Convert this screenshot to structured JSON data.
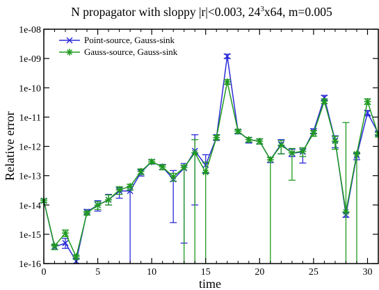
{
  "chart_data": {
    "type": "scatter",
    "title_main": "N propagator with sloppy |r|<0.003, 24",
    "title_sup": "3",
    "title_rest": "x64, m=0.005",
    "xlabel": "time",
    "ylabel": "Relative error",
    "xlim": [
      0,
      31
    ],
    "ylim": [
      1e-16,
      1e-08
    ],
    "yscale": "log",
    "grid": false,
    "legend_position": "top-left",
    "x_ticks": [
      0,
      5,
      10,
      15,
      20,
      25,
      30
    ],
    "y_ticks": [
      1e-16,
      1e-15,
      1e-14,
      1e-13,
      1e-12,
      1e-11,
      1e-10,
      1e-09,
      1e-08
    ],
    "y_tick_labels": [
      "1e-16",
      "1e-15",
      "1e-14",
      "1e-13",
      "1e-12",
      "1e-11",
      "1e-10",
      "1e-09",
      "1e-08"
    ],
    "series": [
      {
        "name": "Point-source, Gauss-sink",
        "color": "#2a2ad8",
        "marker": "x",
        "points": [
          {
            "x": 0,
            "y": 1.4e-14,
            "lo": 1.2e-14,
            "hi": 1.6e-14
          },
          {
            "x": 1,
            "y": 3.7e-16,
            "lo": 3e-16,
            "hi": 4.5e-16
          },
          {
            "x": 2,
            "y": 5e-16,
            "lo": 3.3e-16,
            "hi": 7.2e-16
          },
          {
            "x": 3,
            "y": 1.2e-16,
            "lo": 1e-16,
            "hi": 1.5e-16
          },
          {
            "x": 4,
            "y": 5.8e-15,
            "lo": 4.5e-15,
            "hi": 7e-15
          },
          {
            "x": 5,
            "y": 1e-14,
            "lo": 6.2e-15,
            "hi": 1.4e-14
          },
          {
            "x": 6,
            "y": 1.5e-14,
            "lo": 1e-14,
            "hi": 2.3e-14
          },
          {
            "x": 7,
            "y": 3e-14,
            "lo": 1.7e-14,
            "hi": 4e-14
          },
          {
            "x": 8,
            "y": 3e-14,
            "lo": 1e-16,
            "hi": 4.3e-14
          },
          {
            "x": 9,
            "y": 1.3e-13,
            "lo": 9.7e-14,
            "hi": 1.6e-13
          },
          {
            "x": 10,
            "y": 3e-13,
            "lo": 2.5e-13,
            "hi": 3.5e-13
          },
          {
            "x": 11,
            "y": 2e-13,
            "lo": 1.6e-13,
            "hi": 2.4e-13
          },
          {
            "x": 12,
            "y": 7.5e-14,
            "lo": 2.5e-15,
            "hi": 1.5e-13
          },
          {
            "x": 13,
            "y": 1.8e-13,
            "lo": 5e-16,
            "hi": 2.6e-13
          },
          {
            "x": 14,
            "y": 7e-13,
            "lo": 1e-14,
            "hi": 2.5e-12
          },
          {
            "x": 15,
            "y": 2.3e-13,
            "lo": 1.2e-13,
            "hi": 5.2e-13
          },
          {
            "x": 16,
            "y": 2e-12,
            "lo": 1.6e-12,
            "hi": 2.5e-12
          },
          {
            "x": 17,
            "y": 1.2e-09,
            "lo": 1e-09,
            "hi": 1.4e-09
          },
          {
            "x": 18,
            "y": 3.2e-12,
            "lo": 2.7e-12,
            "hi": 3.8e-12
          },
          {
            "x": 19,
            "y": 1.7e-12,
            "lo": 1.3e-12,
            "hi": 2e-12
          },
          {
            "x": 20,
            "y": 1.5e-12,
            "lo": 1.2e-12,
            "hi": 1.8e-12
          },
          {
            "x": 21,
            "y": 3.5e-13,
            "lo": 2.8e-13,
            "hi": 4.2e-13
          },
          {
            "x": 22,
            "y": 1.2e-12,
            "lo": 5.6e-13,
            "hi": 1.7e-12
          },
          {
            "x": 23,
            "y": 5.8e-13,
            "lo": 4.5e-13,
            "hi": 8e-13
          },
          {
            "x": 24,
            "y": 6.5e-13,
            "lo": 2.7e-13,
            "hi": 8.2e-13
          },
          {
            "x": 25,
            "y": 3.3e-12,
            "lo": 2.7e-12,
            "hi": 4e-12
          },
          {
            "x": 26,
            "y": 4.6e-11,
            "lo": 3.7e-11,
            "hi": 5.5e-11
          },
          {
            "x": 27,
            "y": 1.6e-12,
            "lo": 9e-13,
            "hi": 2.3e-12
          },
          {
            "x": 28,
            "y": 4.6e-15,
            "lo": 3.8e-15,
            "hi": 5.5e-15
          },
          {
            "x": 29,
            "y": 4.8e-13,
            "lo": 3.5e-13,
            "hi": 5.8e-13
          },
          {
            "x": 30,
            "y": 1.4e-11,
            "lo": 1.1e-11,
            "hi": 1.7e-11
          },
          {
            "x": 31,
            "y": 2.8e-12,
            "lo": 2.4e-12,
            "hi": 3.3e-12
          }
        ]
      },
      {
        "name": "Gauss-source, Gauss-sink",
        "color": "#1f9a1f",
        "marker": "asterisk",
        "points": [
          {
            "x": 0,
            "y": 1.4e-14,
            "lo": 1.2e-14,
            "hi": 1.6e-14
          },
          {
            "x": 1,
            "y": 4e-16,
            "lo": 3e-16,
            "hi": 4.4e-16
          },
          {
            "x": 2,
            "y": 1.1e-15,
            "lo": 8.3e-16,
            "hi": 1.4e-15
          },
          {
            "x": 3,
            "y": 1.7e-16,
            "lo": 1.4e-16,
            "hi": 1.9e-16
          },
          {
            "x": 4,
            "y": 5.4e-15,
            "lo": 4.5e-15,
            "hi": 6e-15
          },
          {
            "x": 5,
            "y": 9.8e-15,
            "lo": 7e-15,
            "hi": 1.3e-14
          },
          {
            "x": 6,
            "y": 1.5e-14,
            "lo": 1e-14,
            "hi": 2.2e-14
          },
          {
            "x": 7,
            "y": 3.3e-14,
            "lo": 2.3e-14,
            "hi": 4.2e-14
          },
          {
            "x": 8,
            "y": 4.3e-14,
            "lo": 3.2e-14,
            "hi": 5.1e-14
          },
          {
            "x": 9,
            "y": 1.4e-13,
            "lo": 1.1e-13,
            "hi": 1.7e-13
          },
          {
            "x": 10,
            "y": 3e-13,
            "lo": 2.6e-13,
            "hi": 3.5e-13
          },
          {
            "x": 11,
            "y": 2e-13,
            "lo": 1.6e-13,
            "hi": 2.3e-13
          },
          {
            "x": 12,
            "y": 9.2e-14,
            "lo": 6.5e-14,
            "hi": 1.2e-13
          },
          {
            "x": 13,
            "y": 1.9e-13,
            "lo": 1e-16,
            "hi": 2.3e-13
          },
          {
            "x": 14,
            "y": 6e-13,
            "lo": 1e-16,
            "hi": 1.7e-12
          },
          {
            "x": 15,
            "y": 1.3e-13,
            "lo": 1e-16,
            "hi": 2.9e-13
          },
          {
            "x": 16,
            "y": 2e-12,
            "lo": 1.7e-12,
            "hi": 2.4e-12
          },
          {
            "x": 17,
            "y": 1.6e-10,
            "lo": 1.3e-10,
            "hi": 1.9e-10
          },
          {
            "x": 18,
            "y": 3.3e-12,
            "lo": 2.8e-12,
            "hi": 3.7e-12
          },
          {
            "x": 19,
            "y": 1.7e-12,
            "lo": 1.4e-12,
            "hi": 2e-12
          },
          {
            "x": 20,
            "y": 1.5e-12,
            "lo": 1.2e-12,
            "hi": 1.8e-12
          },
          {
            "x": 21,
            "y": 3.5e-13,
            "lo": 1e-16,
            "hi": 4.2e-13
          },
          {
            "x": 22,
            "y": 1.1e-12,
            "lo": 5.5e-13,
            "hi": 1.6e-12
          },
          {
            "x": 23,
            "y": 6e-13,
            "lo": 7e-14,
            "hi": 8.5e-13
          },
          {
            "x": 24,
            "y": 6.8e-13,
            "lo": 4.5e-13,
            "hi": 9e-13
          },
          {
            "x": 25,
            "y": 2.8e-12,
            "lo": 2.2e-12,
            "hi": 3.5e-12
          },
          {
            "x": 26,
            "y": 3.5e-11,
            "lo": 2.9e-11,
            "hi": 4.2e-11
          },
          {
            "x": 27,
            "y": 1.5e-12,
            "lo": 8e-13,
            "hi": 2.2e-12
          },
          {
            "x": 28,
            "y": 5.8e-15,
            "lo": 1e-16,
            "hi": 6.5e-12
          },
          {
            "x": 29,
            "y": 5.5e-13,
            "lo": 1e-16,
            "hi": 6.3e-13
          },
          {
            "x": 30,
            "y": 3.4e-11,
            "lo": 2.7e-11,
            "hi": 4.2e-11
          },
          {
            "x": 31,
            "y": 2.5e-12,
            "lo": 2.1e-12,
            "hi": 3e-12
          }
        ]
      }
    ]
  }
}
